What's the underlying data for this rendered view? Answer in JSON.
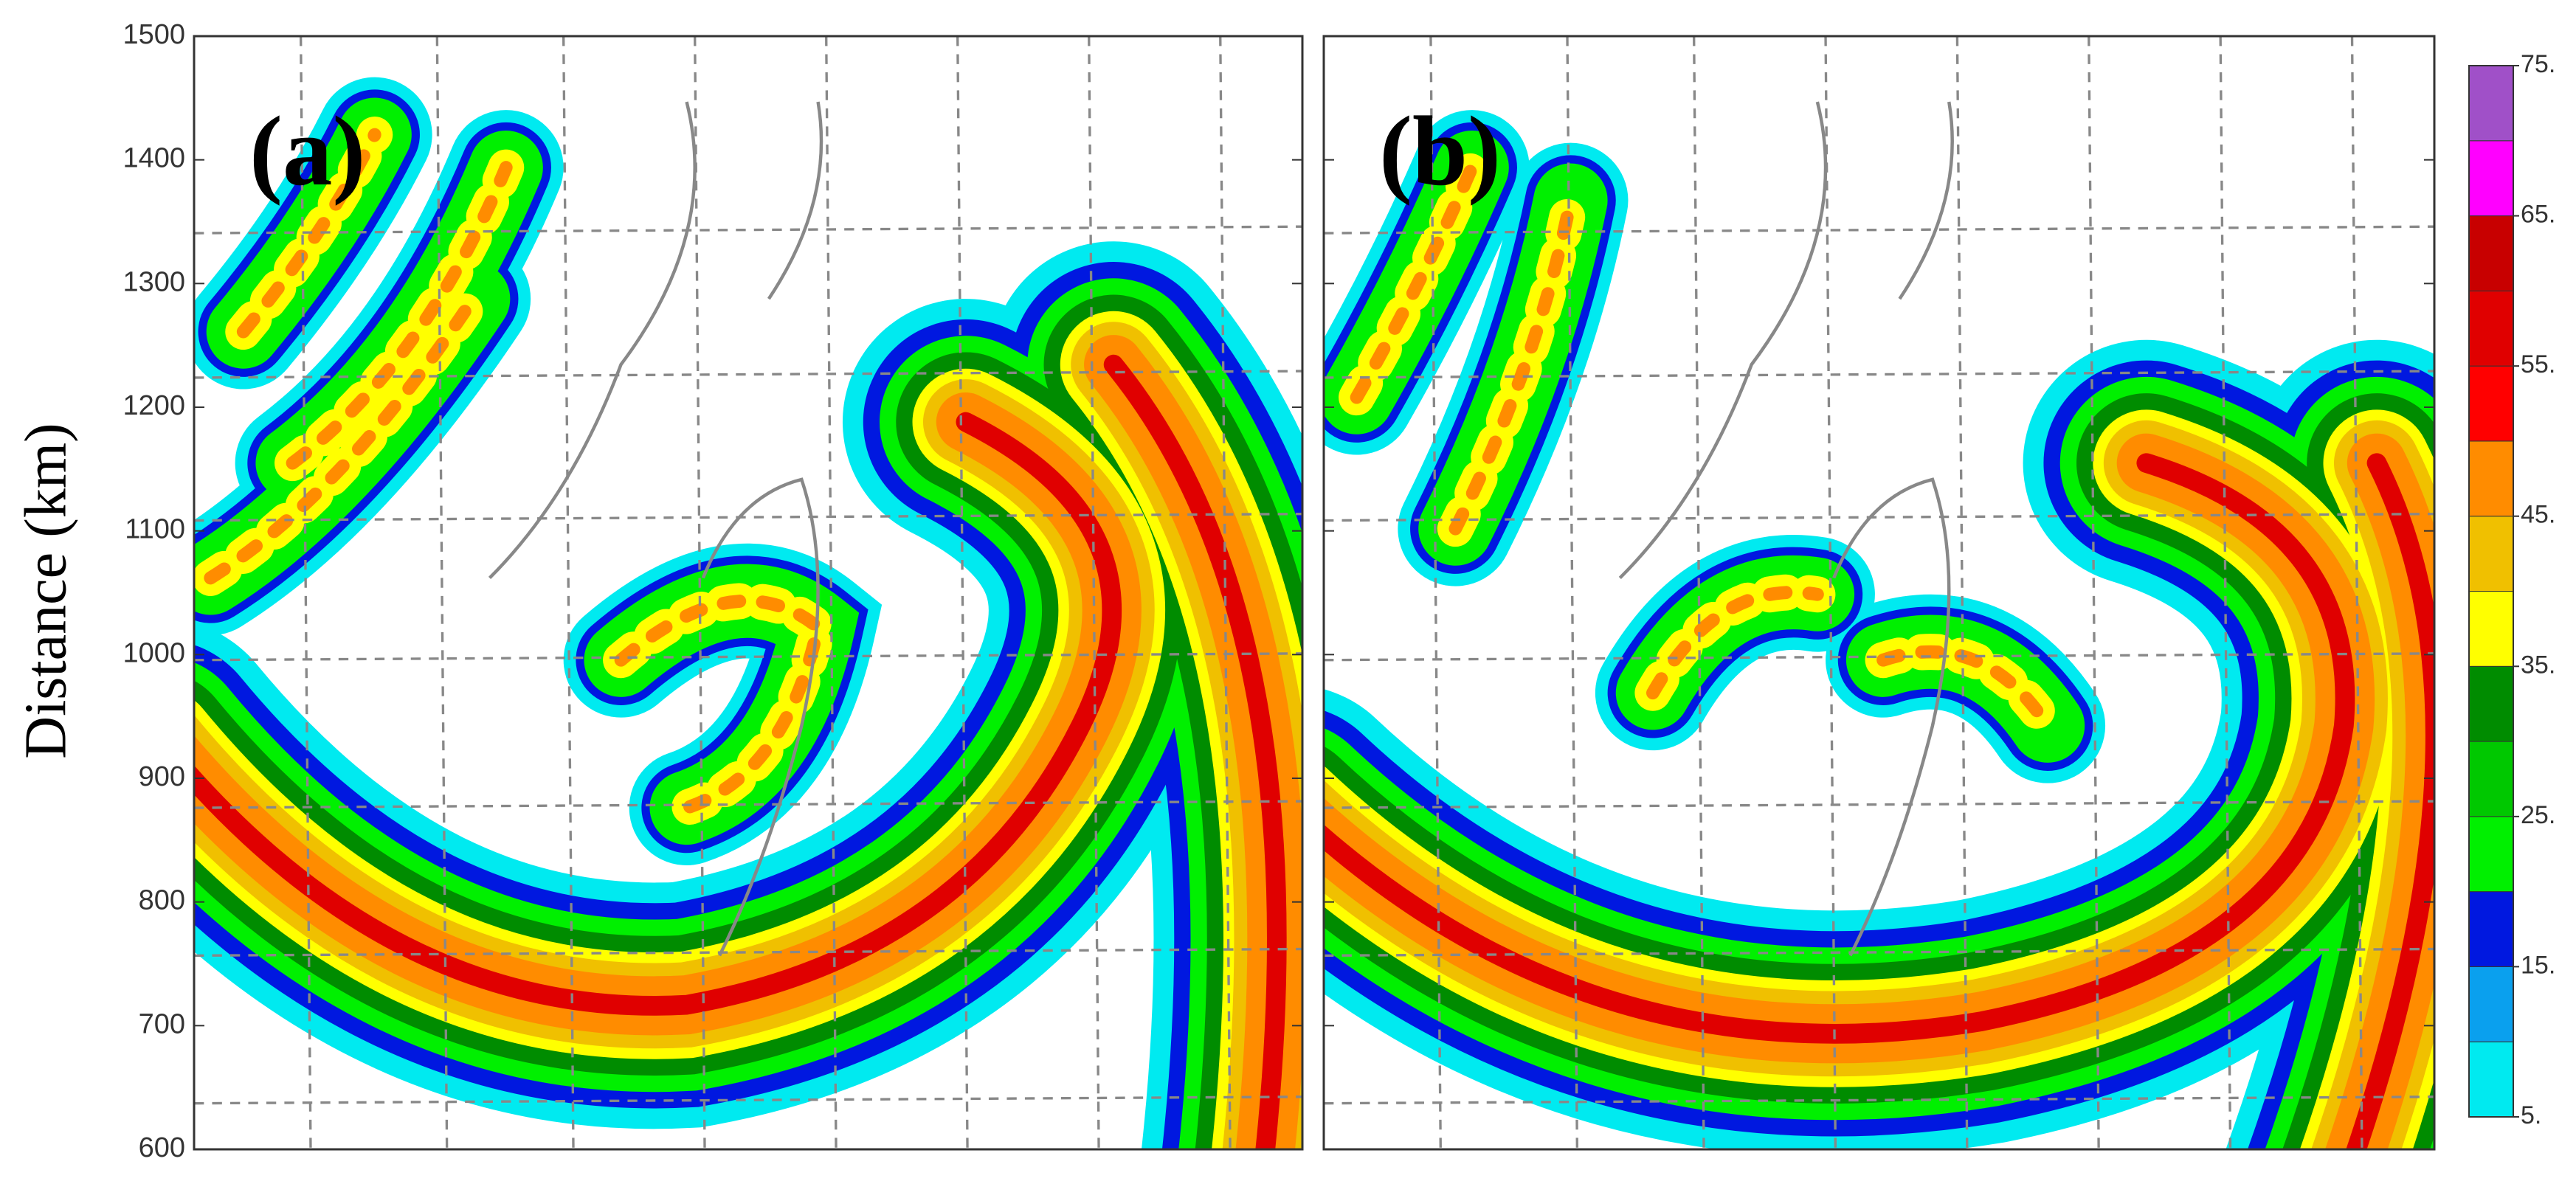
{
  "chart_data": {
    "type": "heatmap",
    "ylabel": "Distance (km)",
    "ylim": [
      600,
      1500
    ],
    "yticks": [
      600,
      700,
      800,
      900,
      1000,
      1100,
      1200,
      1300,
      1400,
      1500
    ],
    "panels": [
      {
        "label": "(a)"
      },
      {
        "label": "(b)"
      }
    ],
    "colorbar": {
      "levels": [
        5,
        10,
        15,
        20,
        25,
        30,
        35,
        40,
        45,
        50,
        55,
        60,
        65,
        70,
        75
      ],
      "colors": [
        "#00eaf0",
        "#0aa0ee",
        "#0018e0",
        "#00f000",
        "#00c800",
        "#008c00",
        "#ffff00",
        "#f0c000",
        "#ff8c00",
        "#ff0000",
        "#e00000",
        "#c80000",
        "#ff00ff",
        "#a050c8"
      ],
      "ticks": [
        {
          "value": 5,
          "label": "5."
        },
        {
          "value": 15,
          "label": "15."
        },
        {
          "value": 25,
          "label": "25."
        },
        {
          "value": 35,
          "label": "35."
        },
        {
          "value": 45,
          "label": "45."
        },
        {
          "value": 55,
          "label": "55."
        },
        {
          "value": 65,
          "label": "65."
        },
        {
          "value": 75,
          "label": "75."
        }
      ]
    }
  }
}
